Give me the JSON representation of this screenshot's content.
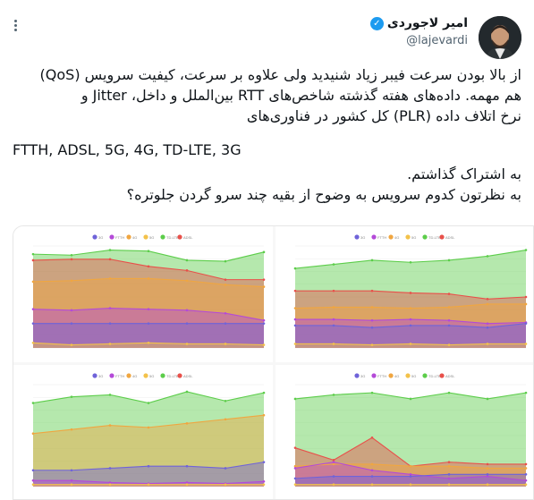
{
  "tweet": {
    "author_name": "امیر لاجوردی",
    "handle": "@lajevardi",
    "verified_icon": "check-icon",
    "more_icon": "more-options-icon",
    "text_lines": [
      "از بالا بودن سرعت فیبر زیاد شنیدید ولی علاوه بر سرعت، کیفیت سرویس (QoS)",
      "هم مهمه. داده‌های هفته گذشته شاخص‌های RTT بین‌الملل و داخل، Jitter و",
      "نرخ اتلاف داده (PLR) کل کشور در فناوری‌های"
    ],
    "tech_line": "FTTH, ADSL, 5G, 4G, TD-LTE, 3G",
    "text_lines_2": [
      "به اشتراک گذاشتم.",
      "به نظرتون کدوم سرویس به وضوح از بقیه چند سرو گردن جلوتره؟"
    ]
  },
  "colors": {
    "3G": "#6f63d9",
    "FTTH": "#b44ad8",
    "4G": "#f0a640",
    "5G": "#f3c24a",
    "TD-LTE": "#5ccd4a",
    "ADSL": "#e8504a",
    "blue": "#3d6ed8"
  },
  "chart_data": [
    {
      "type": "area",
      "legend": [
        "3G",
        "FTTH",
        "4G",
        "5G",
        "TD-LTE",
        "ADSL"
      ],
      "ylim": [
        0,
        100
      ],
      "series": [
        {
          "name": "TD-LTE",
          "values": [
            92,
            91,
            96,
            95,
            86,
            85,
            94
          ]
        },
        {
          "name": "ADSL",
          "values": [
            86,
            87,
            87,
            80,
            76,
            67,
            67
          ]
        },
        {
          "name": "4G",
          "values": [
            65,
            66,
            68,
            68,
            66,
            62,
            60
          ]
        },
        {
          "name": "FTTH",
          "values": [
            38,
            37,
            39,
            38,
            37,
            34,
            27
          ]
        },
        {
          "name": "3G",
          "values": [
            24,
            24,
            24,
            24,
            24,
            24,
            24
          ]
        },
        {
          "name": "5G",
          "values": [
            5,
            3,
            4,
            5,
            4,
            4,
            3
          ]
        }
      ]
    },
    {
      "type": "area",
      "legend": [
        "3G",
        "FTTH",
        "4G",
        "5G",
        "TD-LTE",
        "ADSL"
      ],
      "ylim": [
        0,
        100
      ],
      "series": [
        {
          "name": "TD-LTE",
          "values": [
            78,
            82,
            86,
            84,
            86,
            90,
            96
          ]
        },
        {
          "name": "ADSL",
          "values": [
            56,
            56,
            56,
            54,
            53,
            48,
            50
          ]
        },
        {
          "name": "4G",
          "values": [
            39,
            40,
            40,
            39,
            40,
            43,
            43
          ]
        },
        {
          "name": "FTTH",
          "values": [
            28,
            28,
            27,
            28,
            27,
            24,
            25
          ]
        },
        {
          "name": "3G",
          "values": [
            22,
            22,
            20,
            22,
            22,
            20,
            24
          ]
        },
        {
          "name": "5G",
          "values": [
            4,
            4,
            3,
            4,
            3,
            4,
            4
          ]
        }
      ]
    },
    {
      "type": "area",
      "legend": [
        "3G",
        "FTTH",
        "4G",
        "5G",
        "TD-LTE",
        "ADSL"
      ],
      "ylim": [
        0,
        100
      ],
      "series": [
        {
          "name": "TD-LTE",
          "values": [
            82,
            88,
            90,
            82,
            93,
            84,
            92
          ]
        },
        {
          "name": "4G",
          "values": [
            52,
            56,
            60,
            58,
            62,
            66,
            70
          ]
        },
        {
          "name": "3G",
          "values": [
            16,
            16,
            18,
            20,
            20,
            18,
            24
          ]
        },
        {
          "name": "FTTH",
          "values": [
            6,
            6,
            4,
            3,
            4,
            3,
            5
          ]
        },
        {
          "name": "5G",
          "values": [
            2,
            2,
            2,
            2,
            2,
            2,
            2
          ]
        }
      ]
    },
    {
      "type": "area",
      "legend": [
        "3G",
        "FTTH",
        "4G",
        "5G",
        "TD-LTE",
        "ADSL"
      ],
      "ylim": [
        0,
        100
      ],
      "series": [
        {
          "name": "TD-LTE",
          "values": [
            86,
            90,
            92,
            86,
            92,
            86,
            92
          ]
        },
        {
          "name": "ADSL",
          "values": [
            38,
            26,
            48,
            20,
            24,
            22,
            22
          ]
        },
        {
          "name": "4G",
          "values": [
            20,
            22,
            22,
            20,
            20,
            18,
            18
          ]
        },
        {
          "name": "FTTH",
          "values": [
            18,
            24,
            16,
            12,
            8,
            10,
            6
          ]
        },
        {
          "name": "3G",
          "values": [
            8,
            10,
            10,
            10,
            12,
            12,
            12
          ]
        },
        {
          "name": "5G",
          "values": [
            2,
            2,
            2,
            2,
            2,
            2,
            2
          ]
        }
      ]
    }
  ]
}
